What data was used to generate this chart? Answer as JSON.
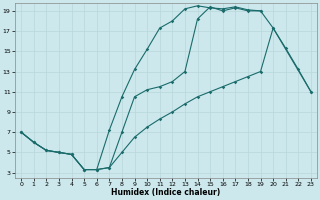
{
  "bg_color": "#cce8ec",
  "grid_color": "#b8d8dc",
  "line_color": "#1a6b6b",
  "xlabel": "Humidex (Indice chaleur)",
  "xlim": [
    -0.5,
    23.5
  ],
  "ylim": [
    2.5,
    19.8
  ],
  "xticks": [
    0,
    1,
    2,
    3,
    4,
    5,
    6,
    7,
    8,
    9,
    10,
    11,
    12,
    13,
    14,
    15,
    16,
    17,
    18,
    19,
    20,
    21,
    22,
    23
  ],
  "yticks": [
    3,
    5,
    7,
    9,
    11,
    13,
    15,
    17,
    19
  ],
  "upper_x": [
    0,
    1,
    2,
    3,
    4,
    5,
    6,
    7,
    8,
    9,
    10,
    11,
    12,
    13,
    14,
    15,
    16,
    17,
    18,
    19
  ],
  "upper_y": [
    7,
    6,
    5.2,
    5,
    4.8,
    3.3,
    3.3,
    7.2,
    10.5,
    13.2,
    15.2,
    17.3,
    18.0,
    19.2,
    19.5,
    19.3,
    19.2,
    19.4,
    19.1,
    19.0
  ],
  "mid_x": [
    0,
    1,
    2,
    3,
    4,
    5,
    6,
    7,
    8,
    9,
    10,
    11,
    12,
    13,
    14,
    15,
    16,
    17,
    18,
    19,
    20,
    21,
    22,
    23
  ],
  "mid_y": [
    7,
    6,
    5.2,
    5,
    4.8,
    3.3,
    3.3,
    3.5,
    7.0,
    10.5,
    11.2,
    11.5,
    12.0,
    13.0,
    18.2,
    19.4,
    19.0,
    19.3,
    19.0,
    19.0,
    17.3,
    15.3,
    13.2,
    11.0
  ],
  "low_x": [
    0,
    1,
    2,
    3,
    4,
    5,
    6,
    7,
    8,
    9,
    10,
    11,
    12,
    13,
    14,
    15,
    16,
    17,
    18,
    19,
    20,
    23
  ],
  "low_y": [
    7,
    6,
    5.2,
    5,
    4.8,
    3.3,
    3.3,
    3.5,
    5.0,
    6.5,
    7.5,
    8.3,
    9.0,
    9.8,
    10.5,
    11.0,
    11.5,
    12.0,
    12.5,
    13.0,
    17.3,
    11.0
  ]
}
